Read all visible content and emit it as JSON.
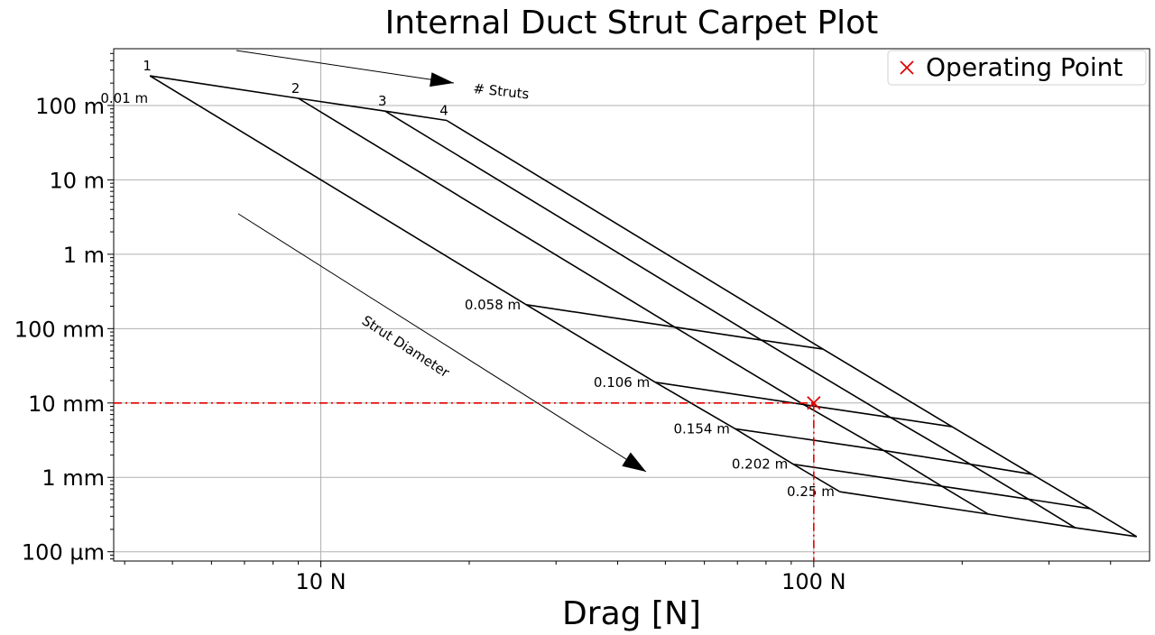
{
  "chart_data": {
    "type": "line",
    "title": "Internal Duct Strut Carpet Plot",
    "xlabel": "Drag [N]",
    "ylabel": "",
    "xscale": "log",
    "yscale": "log",
    "xlim": [
      3.8,
      480
    ],
    "ylim": [
      7.5e-05,
      580
    ],
    "grid": true,
    "x_ticks": [
      {
        "value": 10,
        "label": "10 N"
      },
      {
        "value": 100,
        "label": "100 N"
      }
    ],
    "y_ticks": [
      {
        "value": 0.0001,
        "label": "100 µm"
      },
      {
        "value": 0.001,
        "label": "1 mm"
      },
      {
        "value": 0.01,
        "label": "10 mm"
      },
      {
        "value": 0.1,
        "label": "100 mm"
      },
      {
        "value": 1,
        "label": "1 m"
      },
      {
        "value": 10,
        "label": "10 m"
      },
      {
        "value": 100,
        "label": "100 m"
      }
    ],
    "strut_counts": [
      "1",
      "2",
      "3",
      "4"
    ],
    "diameters": [
      "0.01 m",
      "0.058 m",
      "0.106 m",
      "0.154 m",
      "0.202 m",
      "0.25 m"
    ],
    "grid_points": [
      [
        [
          4.5,
          250
        ],
        [
          9.0,
          125
        ],
        [
          13.5,
          84
        ],
        [
          18.0,
          63
        ]
      ],
      [
        [
          26.1,
          0.21
        ],
        [
          52.2,
          0.105
        ],
        [
          78.3,
          0.07
        ],
        [
          104.4,
          0.053
        ]
      ],
      [
        [
          47.7,
          0.019
        ],
        [
          95.4,
          0.0095
        ],
        [
          143.1,
          0.0064
        ],
        [
          190.8,
          0.0048
        ]
      ],
      [
        [
          69.3,
          0.0045
        ],
        [
          138.6,
          0.0023
        ],
        [
          207.9,
          0.0015
        ],
        [
          277.2,
          0.0011
        ]
      ],
      [
        [
          90.9,
          0.0015
        ],
        [
          181.8,
          0.00076
        ],
        [
          272.7,
          0.00051
        ],
        [
          363.6,
          0.00038
        ]
      ],
      [
        [
          113,
          0.00064
        ],
        [
          226,
          0.00032
        ],
        [
          339,
          0.00021
        ],
        [
          452,
          0.00016
        ]
      ]
    ],
    "operating_point": {
      "x": 100,
      "y": 0.01,
      "label": "Operating Point",
      "color": "#e00000"
    },
    "annotations": {
      "struts_label": "# Struts",
      "diameter_label": "Strut Diameter"
    },
    "legend": {
      "position": "top-right",
      "entries": [
        "Operating Point"
      ]
    },
    "colors": {
      "lines": "#000000",
      "operating": "#e00000",
      "grid": "#b0b0b0"
    }
  }
}
